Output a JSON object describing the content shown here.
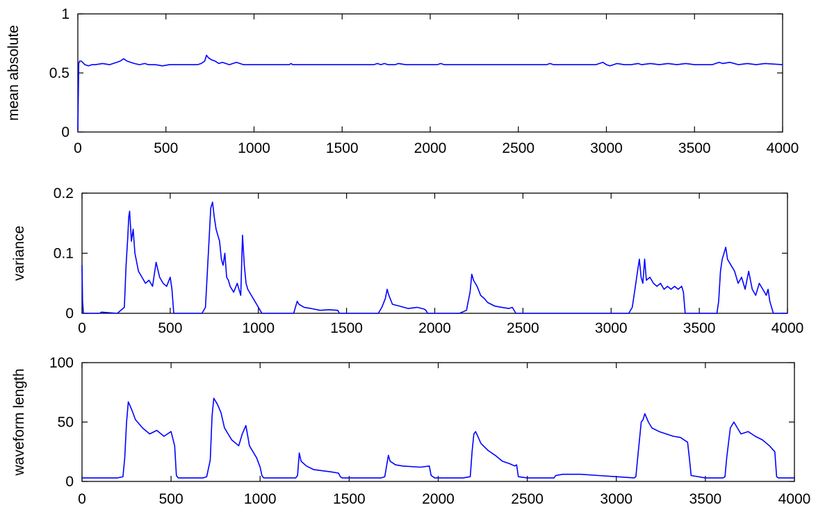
{
  "chart_data": [
    {
      "type": "line",
      "ylabel": "mean absolute",
      "xlim": [
        0,
        4000
      ],
      "ylim": [
        0,
        1
      ],
      "xticks": [
        "0",
        "500",
        "1000",
        "1500",
        "2000",
        "2500",
        "3000",
        "3500",
        "4000"
      ],
      "yticks": [
        "0",
        "0.5",
        "1"
      ],
      "color": "#0000ff",
      "series": [
        {
          "x": [
            0,
            5,
            10,
            20,
            40,
            60,
            80,
            100,
            140,
            180,
            220,
            240,
            250,
            260,
            280,
            300,
            320,
            350,
            380,
            400,
            440,
            480,
            520,
            560,
            600,
            640,
            680,
            700,
            720,
            730,
            740,
            760,
            780,
            800,
            820,
            840,
            860,
            880,
            900,
            920,
            940,
            960,
            1000,
            1100,
            1200,
            1210,
            1220,
            1230,
            1400,
            1600,
            1680,
            1700,
            1720,
            1740,
            1760,
            1800,
            1820,
            1860,
            1900,
            1950,
            2000,
            2040,
            2060,
            2080,
            2100,
            2200,
            2400,
            2660,
            2680,
            2700,
            2800,
            2940,
            2960,
            2980,
            3000,
            3020,
            3040,
            3060,
            3100,
            3140,
            3180,
            3200,
            3250,
            3300,
            3350,
            3400,
            3450,
            3500,
            3560,
            3600,
            3620,
            3640,
            3660,
            3700,
            3750,
            3800,
            3850,
            3900,
            4000
          ],
          "y": [
            0.02,
            0.58,
            0.6,
            0.6,
            0.57,
            0.56,
            0.57,
            0.57,
            0.58,
            0.57,
            0.59,
            0.6,
            0.61,
            0.62,
            0.6,
            0.59,
            0.58,
            0.57,
            0.58,
            0.57,
            0.57,
            0.56,
            0.57,
            0.57,
            0.57,
            0.57,
            0.57,
            0.58,
            0.6,
            0.65,
            0.63,
            0.61,
            0.6,
            0.58,
            0.59,
            0.58,
            0.57,
            0.58,
            0.59,
            0.58,
            0.57,
            0.57,
            0.57,
            0.57,
            0.57,
            0.58,
            0.57,
            0.57,
            0.57,
            0.57,
            0.57,
            0.58,
            0.57,
            0.58,
            0.57,
            0.57,
            0.58,
            0.57,
            0.57,
            0.57,
            0.57,
            0.57,
            0.58,
            0.57,
            0.57,
            0.57,
            0.57,
            0.57,
            0.58,
            0.57,
            0.57,
            0.57,
            0.58,
            0.59,
            0.57,
            0.56,
            0.57,
            0.58,
            0.57,
            0.57,
            0.58,
            0.57,
            0.58,
            0.57,
            0.58,
            0.57,
            0.58,
            0.57,
            0.57,
            0.57,
            0.58,
            0.59,
            0.58,
            0.59,
            0.57,
            0.58,
            0.57,
            0.58,
            0.57
          ]
        }
      ]
    },
    {
      "type": "line",
      "ylabel": "variance",
      "xlim": [
        0,
        4000
      ],
      "ylim": [
        0,
        0.2
      ],
      "xticks": [
        "0",
        "500",
        "1000",
        "1500",
        "2000",
        "2500",
        "3000",
        "3500",
        "4000"
      ],
      "yticks": [
        "0",
        "0.1",
        "0.2"
      ],
      "color": "#0000ff",
      "series": [
        {
          "x": [
            0,
            3,
            8,
            15,
            100,
            110,
            200,
            240,
            250,
            260,
            265,
            270,
            280,
            290,
            300,
            310,
            320,
            340,
            360,
            380,
            400,
            420,
            440,
            460,
            480,
            500,
            510,
            520,
            560,
            680,
            700,
            720,
            730,
            740,
            750,
            760,
            770,
            780,
            790,
            800,
            810,
            820,
            830,
            840,
            860,
            880,
            900,
            910,
            920,
            930,
            940,
            960,
            980,
            1000,
            1010,
            1020,
            1200,
            1220,
            1230,
            1260,
            1300,
            1350,
            1400,
            1450,
            1460,
            1470,
            1480,
            1500,
            1600,
            1680,
            1700,
            1720,
            1730,
            1740,
            1760,
            1800,
            1850,
            1900,
            1940,
            1950,
            1960,
            2000,
            2140,
            2180,
            2190,
            2200,
            2210,
            2220,
            2240,
            2260,
            2280,
            2300,
            2340,
            2380,
            2420,
            2440,
            2460,
            2600,
            3000,
            3100,
            3120,
            3140,
            3150,
            3160,
            3170,
            3180,
            3190,
            3200,
            3220,
            3240,
            3260,
            3280,
            3300,
            3320,
            3340,
            3360,
            3380,
            3400,
            3410,
            3420,
            3500,
            3580,
            3600,
            3610,
            3620,
            3630,
            3640,
            3650,
            3660,
            3680,
            3700,
            3720,
            3740,
            3760,
            3780,
            3800,
            3820,
            3840,
            3860,
            3880,
            3890,
            3900,
            3920,
            4000
          ],
          "y": [
            0.08,
            0.02,
            0,
            0,
            0,
            0.002,
            0,
            0.01,
            0.08,
            0.13,
            0.16,
            0.17,
            0.12,
            0.14,
            0.1,
            0.085,
            0.07,
            0.06,
            0.05,
            0.055,
            0.045,
            0.085,
            0.06,
            0.05,
            0.045,
            0.06,
            0.04,
            0,
            0,
            0,
            0.01,
            0.12,
            0.175,
            0.185,
            0.16,
            0.14,
            0.13,
            0.12,
            0.09,
            0.08,
            0.1,
            0.06,
            0.055,
            0.045,
            0.035,
            0.05,
            0.03,
            0.13,
            0.08,
            0.05,
            0.04,
            0.03,
            0.02,
            0.01,
            0.005,
            0,
            0,
            0.02,
            0.015,
            0.01,
            0.008,
            0.005,
            0.006,
            0.005,
            0,
            0,
            0,
            0,
            0,
            0,
            0.01,
            0.025,
            0.04,
            0.03,
            0.015,
            0.012,
            0.008,
            0.01,
            0.007,
            0.005,
            0,
            0,
            0,
            0.005,
            0.02,
            0.035,
            0.065,
            0.055,
            0.045,
            0.03,
            0.025,
            0.018,
            0.012,
            0.01,
            0.008,
            0.01,
            0,
            0,
            0,
            0,
            0.01,
            0.05,
            0.07,
            0.09,
            0.06,
            0.05,
            0.09,
            0.055,
            0.06,
            0.05,
            0.045,
            0.05,
            0.04,
            0.045,
            0.04,
            0.045,
            0.04,
            0.045,
            0.035,
            0,
            0,
            0,
            0,
            0.02,
            0.07,
            0.09,
            0.1,
            0.11,
            0.09,
            0.08,
            0.07,
            0.05,
            0.06,
            0.04,
            0.07,
            0.04,
            0.03,
            0.05,
            0.04,
            0.03,
            0.04,
            0.02,
            0,
            0
          ]
        }
      ]
    },
    {
      "type": "line",
      "ylabel": "waveform length",
      "xlim": [
        0,
        4000
      ],
      "ylim": [
        0,
        100
      ],
      "xticks": [
        "0",
        "500",
        "1000",
        "1500",
        "2000",
        "2500",
        "3000",
        "3500",
        "4000"
      ],
      "yticks": [
        "0",
        "50",
        "100"
      ],
      "color": "#0000ff",
      "series": [
        {
          "x": [
            0,
            100,
            200,
            230,
            240,
            250,
            260,
            280,
            300,
            340,
            380,
            420,
            460,
            500,
            520,
            530,
            540,
            600,
            680,
            700,
            720,
            730,
            740,
            760,
            780,
            800,
            840,
            880,
            900,
            920,
            940,
            980,
            1000,
            1010,
            1020,
            1100,
            1200,
            1210,
            1220,
            1230,
            1260,
            1300,
            1400,
            1440,
            1450,
            1460,
            1500,
            1680,
            1700,
            1720,
            1730,
            1760,
            1800,
            1900,
            1950,
            1960,
            1980,
            2000,
            2140,
            2180,
            2190,
            2200,
            2210,
            2240,
            2280,
            2320,
            2360,
            2400,
            2430,
            2440,
            2450,
            2500,
            2600,
            2650,
            2660,
            2700,
            2800,
            2900,
            3000,
            3100,
            3110,
            3120,
            3140,
            3150,
            3160,
            3180,
            3200,
            3240,
            3280,
            3320,
            3360,
            3400,
            3410,
            3420,
            3500,
            3580,
            3600,
            3610,
            3620,
            3640,
            3660,
            3700,
            3740,
            3780,
            3820,
            3860,
            3890,
            3900,
            3910,
            4000
          ],
          "y": [
            3,
            3,
            3,
            4,
            20,
            50,
            67,
            60,
            52,
            45,
            40,
            43,
            38,
            42,
            30,
            5,
            3,
            3,
            3,
            4,
            18,
            55,
            70,
            65,
            58,
            45,
            35,
            30,
            40,
            47,
            30,
            20,
            12,
            5,
            3,
            3,
            3,
            5,
            24,
            17,
            13,
            10,
            8,
            7,
            4,
            3,
            3,
            3,
            4,
            22,
            17,
            14,
            13,
            12,
            13,
            5,
            3,
            3,
            3,
            4,
            25,
            40,
            42,
            32,
            26,
            22,
            17,
            15,
            13,
            14,
            4,
            3,
            3,
            3,
            5,
            6,
            6,
            5,
            4,
            3,
            4,
            20,
            50,
            52,
            57,
            50,
            45,
            42,
            40,
            38,
            37,
            33,
            20,
            5,
            3,
            3,
            3,
            4,
            20,
            45,
            50,
            40,
            42,
            38,
            35,
            30,
            25,
            4,
            3,
            3
          ]
        }
      ]
    }
  ]
}
